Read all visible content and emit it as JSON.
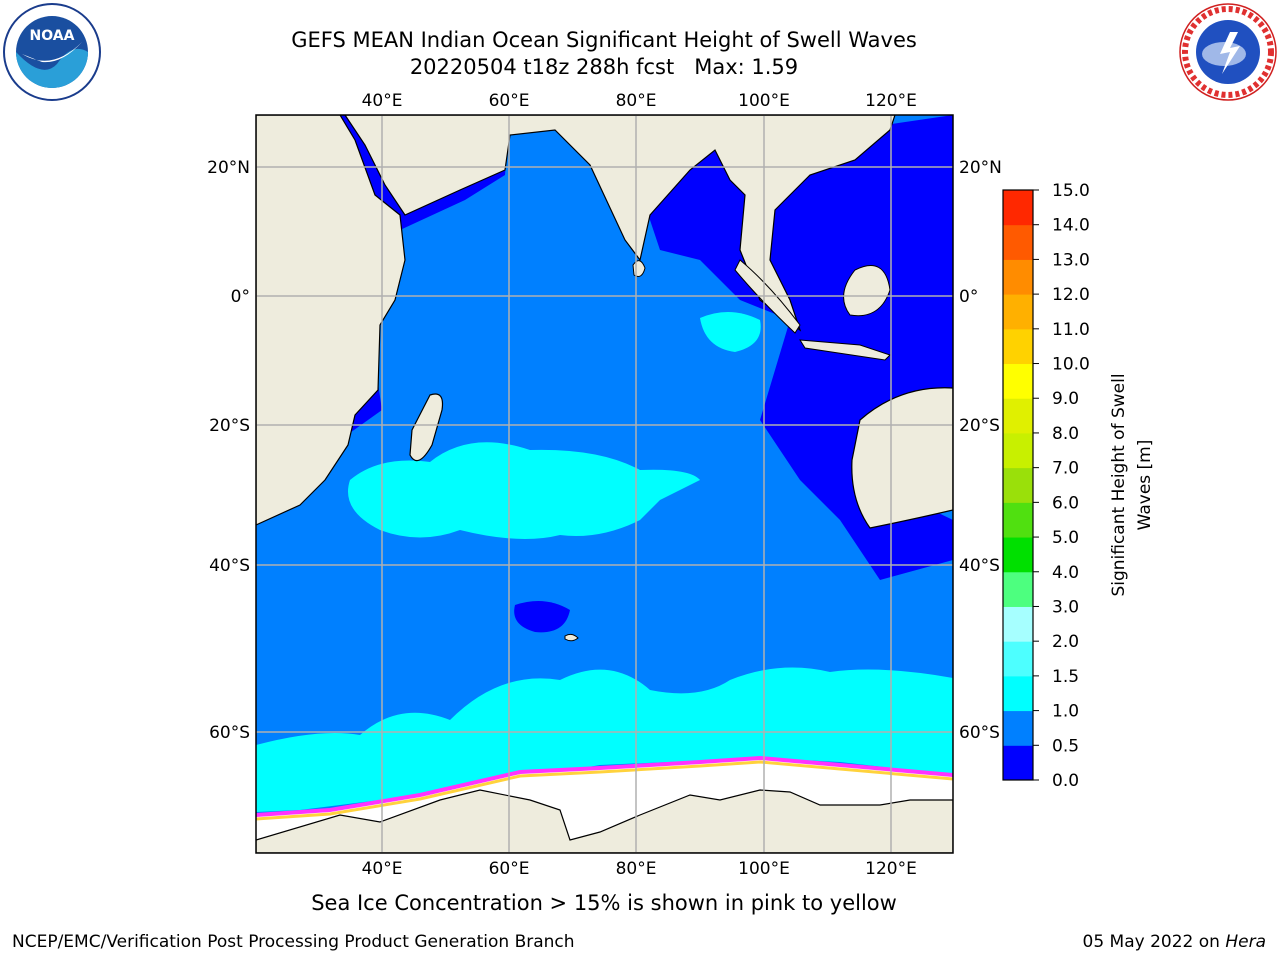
{
  "header": {
    "title_line1": "GEFS MEAN Indian Ocean Significant Height of Swell Waves",
    "title_line2": "20220504 t18z 288h fcst   Max: 1.59"
  },
  "map": {
    "lon_ticks": [
      "40°E",
      "60°E",
      "80°E",
      "100°E",
      "120°E"
    ],
    "lat_ticks": [
      "20°N",
      "0°",
      "20°S",
      "40°S",
      "60°S"
    ],
    "colors": {
      "land": "#eeecdd",
      "ocean_0_0p5": "#0000ff",
      "ocean_0p5_1": "#0080ff",
      "ocean_1_1p5": "#00ffff",
      "sea_ice": "#ffffff",
      "ice_edge_pink": "#ff33ff",
      "ice_edge_yellow": "#ffd23c",
      "grid": "#b0b0b0"
    }
  },
  "colorbar": {
    "label_line1": "Significant Height of Swell",
    "label_line2": "Waves [m]",
    "ticks": [
      "0.0",
      "0.5",
      "1.0",
      "1.5",
      "2.0",
      "3.0",
      "4.0",
      "5.0",
      "6.0",
      "7.0",
      "8.0",
      "9.0",
      "10.0",
      "11.0",
      "12.0",
      "13.0",
      "14.0",
      "15.0"
    ],
    "colors": [
      "#0000ff",
      "#0080ff",
      "#00ffff",
      "#4dffff",
      "#a6ffff",
      "#4dff7f",
      "#00e000",
      "#50e010",
      "#9ae00a",
      "#c8f000",
      "#e0f000",
      "#ffff00",
      "#ffd200",
      "#ffb000",
      "#ff8c00",
      "#ff5a00",
      "#ff2800"
    ]
  },
  "caption": "Sea Ice Concentration > 15% is shown in pink to yellow",
  "footer": {
    "left": "NCEP/EMC/Verification Post Processing Product Generation Branch",
    "date": "05 May 2022 on",
    "host": "Hera"
  }
}
